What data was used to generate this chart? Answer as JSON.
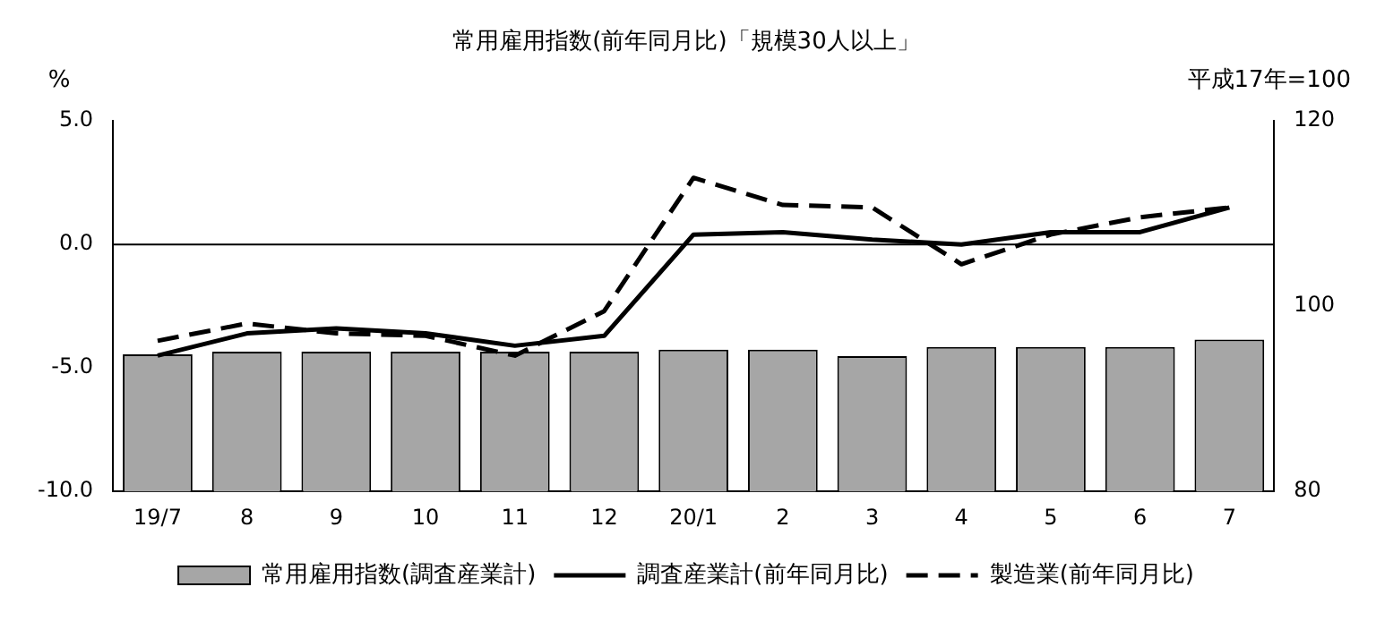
{
  "chart_data": {
    "type": "bar",
    "title": "常用雇用指数(前年同月比)「規模30人以上」",
    "ylabel": "%",
    "y2label": "平成17年=100",
    "categories": [
      "19/7",
      "8",
      "9",
      "10",
      "11",
      "12",
      "20/1",
      "2",
      "3",
      "4",
      "5",
      "6",
      "7"
    ],
    "series": [
      {
        "name": "常用雇用指数(調査産業計)",
        "type": "bar",
        "axis": "y2",
        "color": "#a6a6a6",
        "values": [
          94.8,
          95.1,
          95.1,
          95.1,
          95.1,
          95.1,
          95.3,
          95.3,
          94.6,
          95.6,
          95.6,
          95.6,
          96.4
        ]
      },
      {
        "name": "調査産業計(前年同月比)",
        "type": "line",
        "axis": "y",
        "color": "#000000",
        "line_style": "solid",
        "values": [
          -4.5,
          -3.6,
          -3.4,
          -3.6,
          -4.1,
          -3.7,
          0.4,
          0.5,
          0.2,
          0.0,
          0.5,
          0.5,
          1.5
        ]
      },
      {
        "name": "製造業(前年同月比)",
        "type": "line",
        "axis": "y",
        "color": "#000000",
        "line_style": "dashed",
        "values": [
          -3.9,
          -3.2,
          -3.6,
          -3.7,
          -4.5,
          -2.7,
          2.7,
          1.6,
          1.5,
          -0.8,
          0.4,
          1.1,
          1.5
        ]
      }
    ],
    "ylim": [
      -10,
      5
    ],
    "yticks": [
      {
        "value": -10,
        "label": "-10.0"
      },
      {
        "value": -5,
        "label": "-5.0"
      },
      {
        "value": 0,
        "label": "0.0"
      },
      {
        "value": 5,
        "label": "5.0"
      }
    ],
    "y2lim": [
      80,
      120
    ],
    "y2ticks": [
      80,
      100,
      120
    ],
    "ref_lines": [
      {
        "axis": "y",
        "value": 0,
        "color": "#000000"
      }
    ],
    "grid": false,
    "legend": "bottom",
    "marker": "none"
  }
}
